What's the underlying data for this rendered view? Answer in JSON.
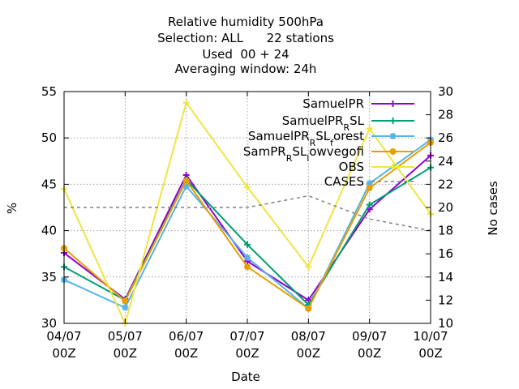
{
  "chart_data": {
    "type": "line",
    "title_lines": [
      "Relative humidity 500hPa",
      "Selection: ALL      22 stations",
      "Used  00 + 24",
      "Averaging window: 24h"
    ],
    "xlabel": "Date",
    "ylabel": "%",
    "y2label": "No cases",
    "categories": [
      "04/07",
      "05/07",
      "06/07",
      "07/07",
      "08/07",
      "09/07",
      "10/07"
    ],
    "tick_suffix": "00Z",
    "ylim": [
      30,
      55
    ],
    "yticks": [
      30,
      35,
      40,
      45,
      50,
      55
    ],
    "y2lim": [
      10,
      30
    ],
    "y2ticks": [
      10,
      12,
      14,
      16,
      18,
      20,
      22,
      24,
      26,
      28,
      30
    ],
    "grid": true,
    "legend_position": "top-right",
    "series": [
      {
        "name": "SamuelPR",
        "color": "#9400d3",
        "marker": "plus",
        "axis": "y1",
        "values": [
          37.6,
          32.6,
          46.0,
          36.7,
          32.5,
          42.3,
          48.1
        ]
      },
      {
        "name": "SamuelPR_RSL",
        "color": "#009e73",
        "marker": "plus",
        "axis": "y1",
        "values": [
          36.1,
          32.5,
          45.5,
          38.5,
          32.0,
          42.8,
          46.8
        ]
      },
      {
        "name": "SamuelPR_RSL_forest",
        "color": "#56b4e9",
        "marker": "star",
        "axis": "y1",
        "values": [
          34.7,
          31.7,
          44.8,
          37.1,
          31.6,
          45.1,
          49.8
        ]
      },
      {
        "name": "SamPR_RSL_lowvegofi",
        "color": "#e69f00",
        "marker": "circle",
        "axis": "y1",
        "values": [
          38.1,
          32.4,
          45.4,
          36.1,
          31.6,
          44.6,
          49.5
        ]
      },
      {
        "name": "OBS",
        "color": "#f0e442",
        "marker": "plus",
        "axis": "y1",
        "values": [
          44.5,
          30.0,
          53.8,
          44.7,
          36.1,
          51.0,
          41.8
        ]
      },
      {
        "name": "CASES",
        "color": "#808080",
        "marker": "none",
        "dash": true,
        "axis": "y2",
        "values": [
          20.0,
          20.0,
          20.0,
          20.0,
          21.0,
          19.0,
          18.0
        ]
      }
    ],
    "legend_labels": [
      {
        "main": "SamuelPR",
        "sub": "",
        "rest": ""
      },
      {
        "main": "SamuelPR",
        "sub": "R",
        "rest": "SL"
      },
      {
        "main": "SamuelPR",
        "sub": "R",
        "rest": "SL",
        "sub2": "f",
        "rest2": "orest"
      },
      {
        "main": "SamPR",
        "sub": "R",
        "rest": "SL",
        "sub2": "l",
        "rest2": "owvegofi"
      },
      {
        "main": "OBS",
        "sub": "",
        "rest": ""
      },
      {
        "main": "CASES",
        "sub": "",
        "rest": ""
      }
    ]
  }
}
